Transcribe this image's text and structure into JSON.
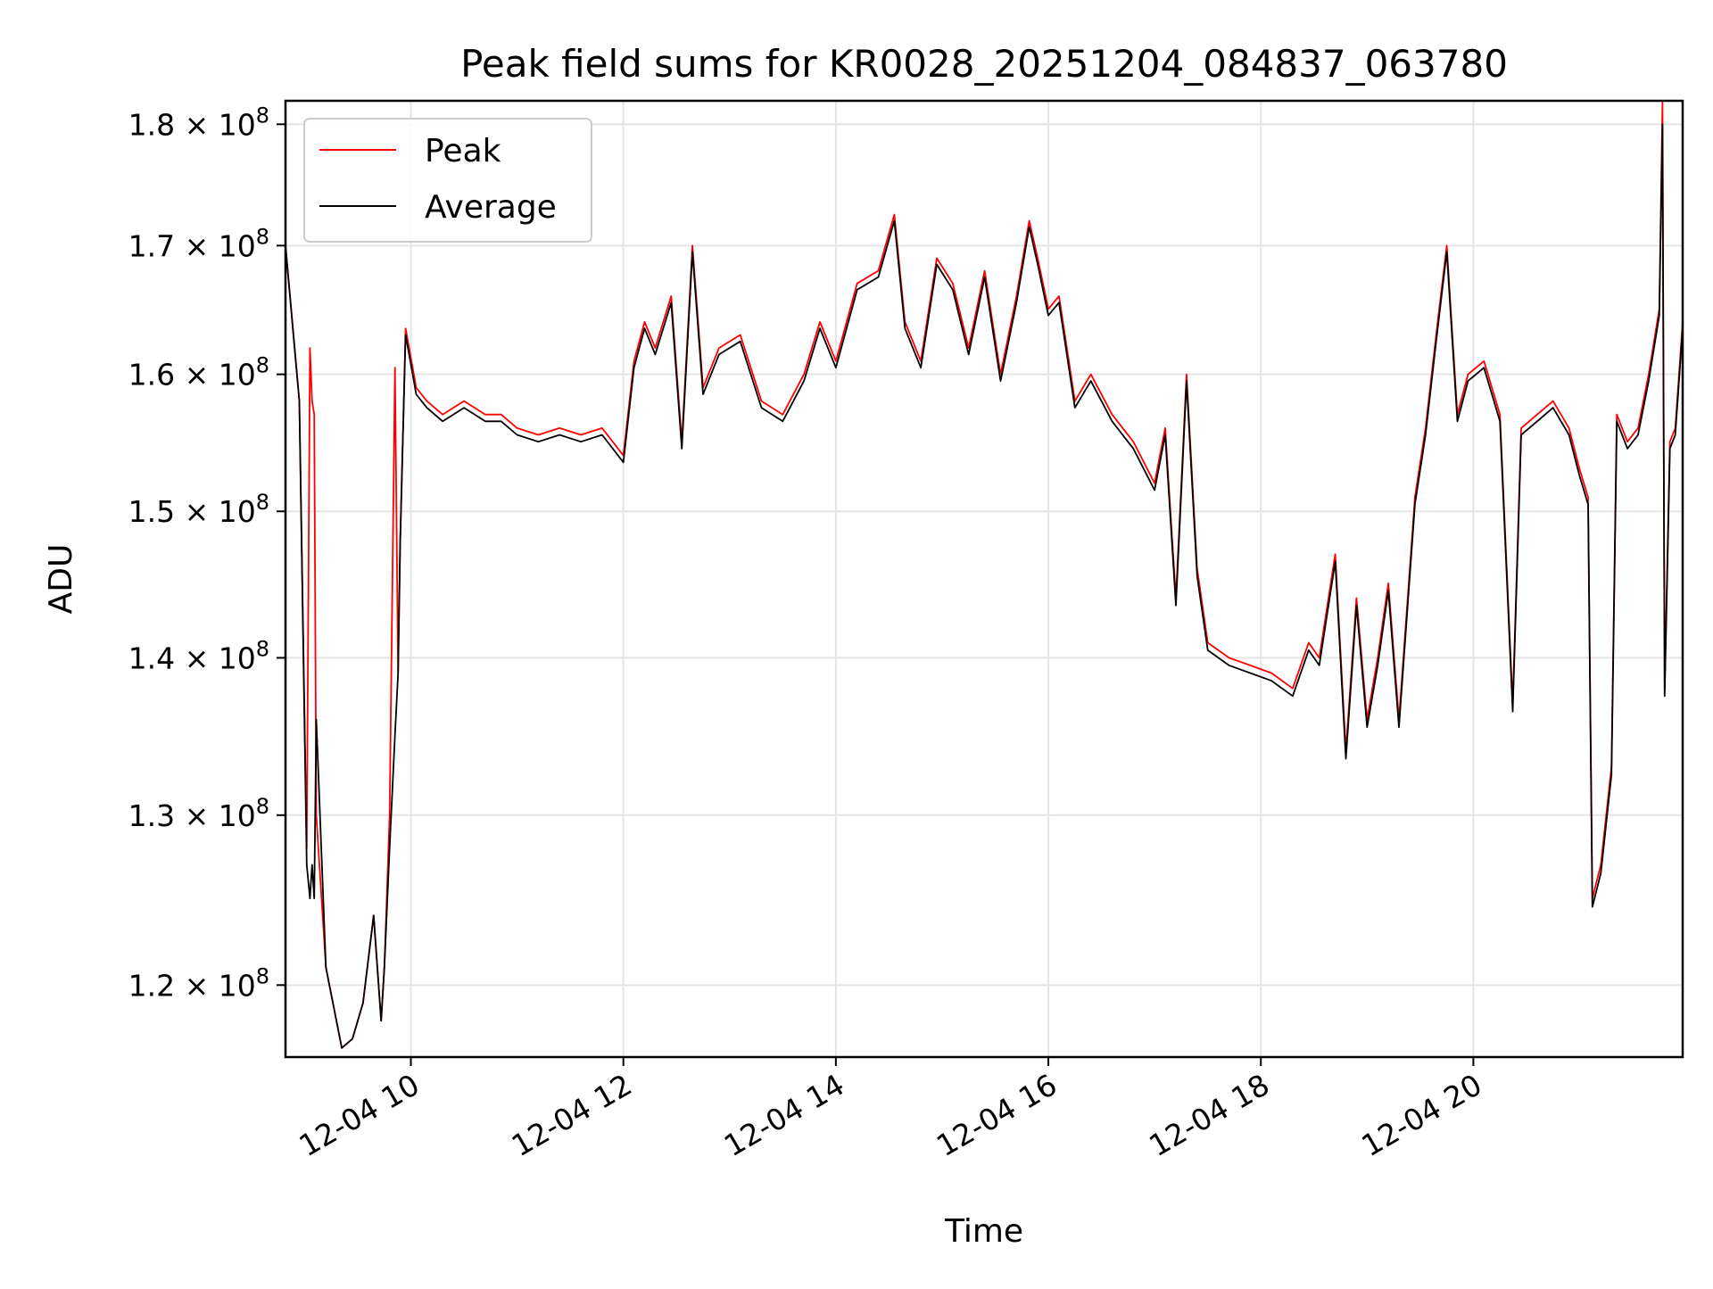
{
  "chart_data": {
    "type": "line",
    "title": "Peak field sums for KR0028_20251204_084837_063780",
    "xlabel": "Time",
    "ylabel": "ADU",
    "x_unit": "hours since 12-04 00:00",
    "xlim": [
      8.82,
      21.97
    ],
    "ylim": [
      116000000.0,
      182000000.0
    ],
    "yscale": "log",
    "grid": true,
    "legend_position": "top-left",
    "x_ticks": [
      {
        "value": 10,
        "label": "12-04 10"
      },
      {
        "value": 12,
        "label": "12-04 12"
      },
      {
        "value": 14,
        "label": "12-04 14"
      },
      {
        "value": 16,
        "label": "12-04 16"
      },
      {
        "value": 18,
        "label": "12-04 18"
      },
      {
        "value": 20,
        "label": "12-04 20"
      }
    ],
    "y_ticks": [
      {
        "value": 120000000,
        "mantissa": "1.2",
        "exponent": "8"
      },
      {
        "value": 130000000,
        "mantissa": "1.3",
        "exponent": "8"
      },
      {
        "value": 140000000,
        "mantissa": "1.4",
        "exponent": "8"
      },
      {
        "value": 150000000,
        "mantissa": "1.5",
        "exponent": "8"
      },
      {
        "value": 160000000,
        "mantissa": "1.6",
        "exponent": "8"
      },
      {
        "value": 170000000,
        "mantissa": "1.7",
        "exponent": "8"
      },
      {
        "value": 180000000,
        "mantissa": "1.8",
        "exponent": "8"
      }
    ],
    "series": [
      {
        "name": "Peak",
        "color": "#ff0000",
        "x": [
          8.82,
          8.95,
          9.02,
          9.05,
          9.07,
          9.09,
          9.11,
          9.2,
          9.35,
          9.45,
          9.55,
          9.65,
          9.72,
          9.75,
          9.8,
          9.85,
          9.88,
          9.9,
          9.95,
          10.05,
          10.15,
          10.3,
          10.5,
          10.7,
          10.85,
          11.0,
          11.2,
          11.4,
          11.6,
          11.8,
          12.0,
          12.1,
          12.2,
          12.3,
          12.45,
          12.55,
          12.65,
          12.75,
          12.9,
          13.1,
          13.3,
          13.5,
          13.7,
          13.85,
          14.0,
          14.2,
          14.4,
          14.55,
          14.65,
          14.8,
          14.95,
          15.1,
          15.25,
          15.4,
          15.55,
          15.7,
          15.82,
          15.9,
          16.0,
          16.1,
          16.25,
          16.4,
          16.6,
          16.8,
          17.0,
          17.1,
          17.2,
          17.3,
          17.4,
          17.5,
          17.7,
          17.9,
          18.1,
          18.3,
          18.45,
          18.55,
          18.7,
          18.8,
          18.9,
          19.0,
          19.1,
          19.2,
          19.3,
          19.45,
          19.55,
          19.65,
          19.75,
          19.85,
          19.95,
          20.1,
          20.25,
          20.37,
          20.45,
          20.6,
          20.75,
          20.9,
          21.0,
          21.08,
          21.12,
          21.2,
          21.3,
          21.35,
          21.45,
          21.55,
          21.65,
          21.75,
          21.78,
          21.8,
          21.85,
          21.9,
          21.97
        ],
        "y": [
          170000000,
          158000000,
          128000000,
          162000000,
          158000000,
          157000000,
          130000000,
          121000000,
          116500000,
          117000000,
          119000000,
          124000000,
          118000000,
          121000000,
          130000000,
          160500000,
          139000000,
          148000000,
          163500000,
          159000000,
          158000000,
          157000000,
          158000000,
          157000000,
          157000000,
          156000000,
          155500000,
          156000000,
          155500000,
          156000000,
          154000000,
          161000000,
          164000000,
          162000000,
          166000000,
          155000000,
          170000000,
          159000000,
          162000000,
          163000000,
          158000000,
          157000000,
          160000000,
          164000000,
          161000000,
          167000000,
          168000000,
          172500000,
          164000000,
          161000000,
          169000000,
          167000000,
          162000000,
          168000000,
          160000000,
          166000000,
          172000000,
          169000000,
          165000000,
          166000000,
          158000000,
          160000000,
          157000000,
          155000000,
          152000000,
          156000000,
          144000000,
          160000000,
          146000000,
          141000000,
          140000000,
          139500000,
          139000000,
          138000000,
          141000000,
          140000000,
          147000000,
          134000000,
          144000000,
          136000000,
          140000000,
          145000000,
          136000000,
          151000000,
          156000000,
          163000000,
          170000000,
          157000000,
          160000000,
          161000000,
          157000000,
          137000000,
          156000000,
          157000000,
          158000000,
          156000000,
          153000000,
          151000000,
          125000000,
          127000000,
          133000000,
          157000000,
          155000000,
          156000000,
          160000000,
          165000000,
          182000000,
          138000000,
          155000000,
          156000000,
          164000000
        ]
      },
      {
        "name": "Average",
        "color": "#000000",
        "x": [
          8.82,
          8.95,
          9.02,
          9.05,
          9.07,
          9.09,
          9.11,
          9.2,
          9.35,
          9.45,
          9.55,
          9.65,
          9.72,
          9.75,
          9.8,
          9.85,
          9.88,
          9.9,
          9.95,
          10.05,
          10.15,
          10.3,
          10.5,
          10.7,
          10.85,
          11.0,
          11.2,
          11.4,
          11.6,
          11.8,
          12.0,
          12.1,
          12.2,
          12.3,
          12.45,
          12.55,
          12.65,
          12.75,
          12.9,
          13.1,
          13.3,
          13.5,
          13.7,
          13.85,
          14.0,
          14.2,
          14.4,
          14.55,
          14.65,
          14.8,
          14.95,
          15.1,
          15.25,
          15.4,
          15.55,
          15.7,
          15.82,
          15.9,
          16.0,
          16.1,
          16.25,
          16.4,
          16.6,
          16.8,
          17.0,
          17.1,
          17.2,
          17.3,
          17.4,
          17.5,
          17.7,
          17.9,
          18.1,
          18.3,
          18.45,
          18.55,
          18.7,
          18.8,
          18.9,
          19.0,
          19.1,
          19.2,
          19.3,
          19.45,
          19.55,
          19.65,
          19.75,
          19.85,
          19.95,
          20.1,
          20.25,
          20.37,
          20.45,
          20.6,
          20.75,
          20.9,
          21.0,
          21.08,
          21.12,
          21.2,
          21.3,
          21.35,
          21.45,
          21.55,
          21.65,
          21.75,
          21.78,
          21.8,
          21.85,
          21.9,
          21.97
        ],
        "y": [
          170000000,
          158000000,
          127000000,
          125000000,
          127000000,
          125000000,
          136000000,
          121000000,
          116500000,
          117000000,
          119000000,
          124000000,
          118000000,
          121000000,
          128000000,
          135000000,
          139000000,
          148000000,
          163000000,
          158500000,
          157500000,
          156500000,
          157500000,
          156500000,
          156500000,
          155500000,
          155000000,
          155500000,
          155000000,
          155500000,
          153500000,
          160500000,
          163500000,
          161500000,
          165500000,
          154500000,
          169500000,
          158500000,
          161500000,
          162500000,
          157500000,
          156500000,
          159500000,
          163500000,
          160500000,
          166500000,
          167500000,
          172000000,
          163500000,
          160500000,
          168500000,
          166500000,
          161500000,
          167500000,
          159500000,
          165500000,
          171500000,
          168500000,
          164500000,
          165500000,
          157500000,
          159500000,
          156500000,
          154500000,
          151500000,
          155500000,
          143500000,
          159500000,
          145500000,
          140500000,
          139500000,
          139000000,
          138500000,
          137500000,
          140500000,
          139500000,
          146500000,
          133500000,
          143500000,
          135500000,
          139500000,
          144500000,
          135500000,
          150500000,
          155500000,
          162500000,
          169500000,
          156500000,
          159500000,
          160500000,
          156500000,
          136500000,
          155500000,
          156500000,
          157500000,
          155500000,
          152500000,
          150500000,
          124500000,
          126500000,
          132500000,
          156500000,
          154500000,
          155500000,
          159500000,
          164500000,
          180000000,
          137500000,
          154500000,
          155500000,
          163500000
        ]
      }
    ]
  }
}
